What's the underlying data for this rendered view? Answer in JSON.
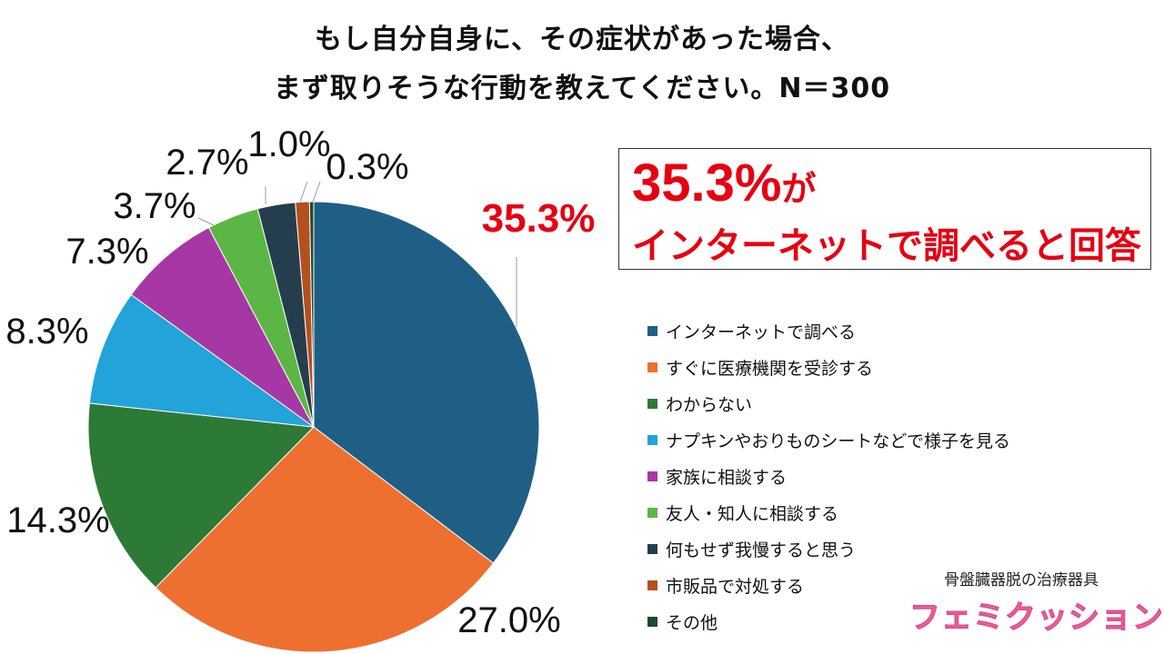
{
  "title": {
    "line1": "もし自分自身に、その症状があった場合、",
    "line2": "まず取りそうな行動を教えてください。N＝300"
  },
  "chart_data": {
    "type": "pie",
    "categories": [
      "インターネットで調べる",
      "すぐに医療機関を受診する",
      "わからない",
      "ナプキンやおりものシートなどで様子を見る",
      "家族に相談する",
      "友人・知人に相談する",
      "何もせず我慢すると思う",
      "市販品で対処する",
      "その他"
    ],
    "values": [
      35.3,
      27.0,
      14.3,
      8.3,
      7.3,
      3.7,
      2.7,
      1.0,
      0.3
    ],
    "labels": [
      "35.3%",
      "27.0%",
      "14.3%",
      "8.3%",
      "7.3%",
      "3.7%",
      "2.7%",
      "1.0%",
      "0.3%"
    ],
    "colors": [
      "#1f5f86",
      "#ed7031",
      "#2d7a37",
      "#22a3d9",
      "#a638a6",
      "#5cb645",
      "#243e4d",
      "#b3501e",
      "#1e4a2e"
    ],
    "highlight_index": 0,
    "highlight_color": "#e60012",
    "legend_position": "right",
    "start_angle": "top, clockwise"
  },
  "callout": {
    "value": "35.3%",
    "suffix": "が",
    "text": "インターネットで調べると回答"
  },
  "brand": {
    "subtitle": "骨盤臓器脱の治療器具",
    "logo": "フェミクッション",
    "mark": "®"
  }
}
